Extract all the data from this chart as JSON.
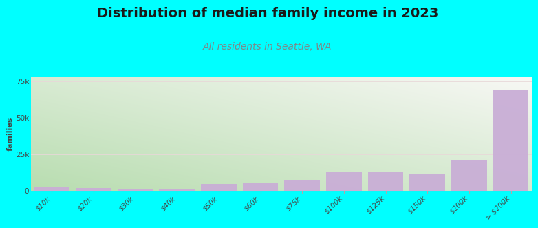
{
  "title": "Distribution of median family income in 2023",
  "subtitle": "All residents in Seattle, WA",
  "ylabel": "families",
  "categories": [
    "$10k",
    "$20k",
    "$30k",
    "$40k",
    "$50k",
    "$60k",
    "$75k",
    "$100k",
    "$125k",
    "$150k",
    "$200k",
    "> $200k"
  ],
  "values": [
    2200,
    1800,
    1600,
    1600,
    4500,
    5000,
    7500,
    13000,
    12500,
    11500,
    21000,
    69500
  ],
  "bar_color": "#c9aed6",
  "background_color": "#00ffff",
  "grad_bottom_left": "#b8ddb0",
  "grad_top_right": "#f8f8f5",
  "title_fontsize": 14,
  "subtitle_fontsize": 10,
  "ylabel_fontsize": 8,
  "tick_fontsize": 7.5,
  "title_color": "#1a1a1a",
  "subtitle_color": "#7a8a8a",
  "ylim": [
    0,
    78000
  ],
  "yticks": [
    0,
    25000,
    50000,
    75000
  ],
  "ytick_labels": [
    "0",
    "25k",
    "50k",
    "75k"
  ],
  "grid_color": "#e8d8d8",
  "grid_linewidth": 0.6
}
